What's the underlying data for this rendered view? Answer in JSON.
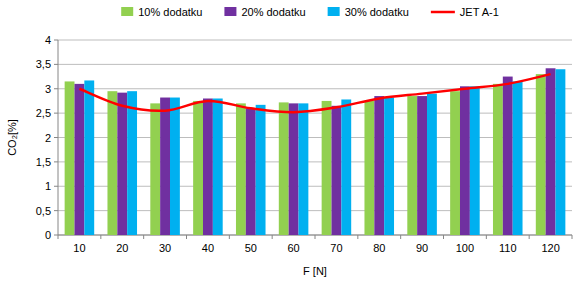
{
  "chart_data": {
    "type": "bar",
    "x_label": "F [N]",
    "y_label": "CO₂[%]",
    "categories": [
      "10",
      "20",
      "30",
      "40",
      "50",
      "60",
      "70",
      "80",
      "90",
      "100",
      "110",
      "120"
    ],
    "series": [
      {
        "name": "10% dodatku",
        "color": "#92d050",
        "type": "bar",
        "values": [
          3.15,
          2.95,
          2.7,
          2.75,
          2.7,
          2.72,
          2.75,
          2.75,
          2.85,
          2.95,
          3.1,
          3.3
        ]
      },
      {
        "name": "20% dodatku",
        "color": "#7030a0",
        "type": "bar",
        "values": [
          3.1,
          2.92,
          2.82,
          2.8,
          2.6,
          2.7,
          2.65,
          2.85,
          2.85,
          3.05,
          3.25,
          3.42
        ]
      },
      {
        "name": "30% dodatku",
        "color": "#00b0f0",
        "type": "bar",
        "values": [
          3.17,
          2.95,
          2.82,
          2.8,
          2.67,
          2.7,
          2.78,
          2.82,
          2.9,
          3.05,
          3.15,
          3.4
        ]
      },
      {
        "name": "JET A-1",
        "color": "#ff0000",
        "type": "line",
        "line_style": "solid",
        "values": [
          3.0,
          2.65,
          2.55,
          2.75,
          2.6,
          2.52,
          2.62,
          2.8,
          2.9,
          3.0,
          3.1,
          3.3
        ]
      }
    ],
    "ylim": [
      0,
      4
    ],
    "yticks": [
      0,
      {
        "value": 0.5,
        "label": "0,5"
      },
      1,
      {
        "value": 1.5,
        "label": "1,5"
      },
      2,
      {
        "value": 2.5,
        "label": "2,5"
      },
      3,
      {
        "value": 3.5,
        "label": "3,5"
      },
      4
    ],
    "grid": true,
    "legend": "top"
  }
}
